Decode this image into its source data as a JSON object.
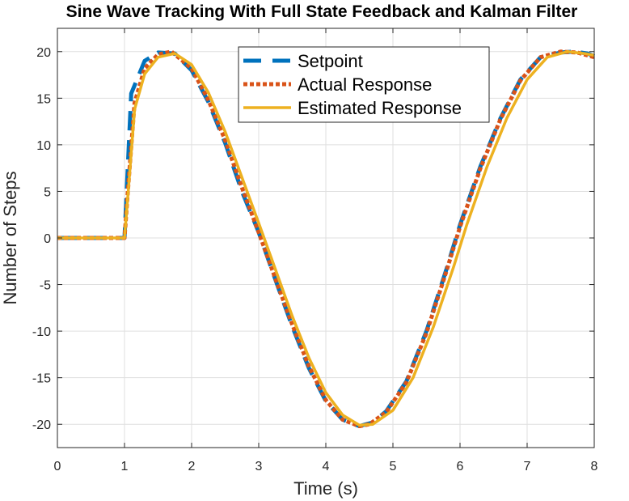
{
  "chart_data": {
    "type": "line",
    "title": "Sine Wave Tracking With Full State Feedback and Kalman Filter",
    "xlabel": "Time (s)",
    "ylabel": "Number of Steps",
    "xlim": [
      0,
      8
    ],
    "ylim": [
      -22.5,
      22.5
    ],
    "xticks": [
      0,
      1,
      2,
      3,
      4,
      5,
      6,
      7,
      8
    ],
    "yticks": [
      -20,
      -15,
      -10,
      -5,
      0,
      5,
      10,
      15,
      20
    ],
    "grid": true,
    "legend_position": "top-center",
    "series": [
      {
        "name": "Setpoint",
        "color": "#0072BD",
        "style": "dashed",
        "x": [
          0,
          1,
          1.0,
          1.1,
          1.3,
          1.5,
          1.75,
          2.0,
          2.25,
          2.5,
          2.75,
          3.0,
          3.25,
          3.5,
          3.75,
          4.0,
          4.25,
          4.5,
          4.7,
          4.9,
          5.2,
          5.5,
          5.8,
          6.0,
          6.3,
          6.6,
          6.9,
          7.2,
          7.5,
          7.7,
          7.9,
          8.0
        ],
        "y": [
          0,
          0,
          0,
          15.5,
          19.0,
          19.9,
          19.8,
          18.0,
          14.6,
          10.2,
          5.0,
          0.6,
          -4.5,
          -9.5,
          -14.0,
          -17.5,
          -19.5,
          -20.2,
          -19.8,
          -18.6,
          -15.4,
          -10.0,
          -3.3,
          1.4,
          7.6,
          12.8,
          17.0,
          19.4,
          19.9,
          20.0,
          19.8,
          19.5
        ]
      },
      {
        "name": "Actual Response",
        "color": "#D95319",
        "style": "dotted",
        "x": [
          0,
          1,
          1.0,
          1.05,
          1.15,
          1.3,
          1.5,
          1.7,
          2.0,
          2.25,
          2.5,
          2.75,
          3.0,
          3.25,
          3.5,
          3.75,
          4.0,
          4.25,
          4.5,
          4.65,
          4.9,
          5.2,
          5.5,
          5.8,
          6.0,
          6.3,
          6.6,
          6.9,
          7.2,
          7.5,
          7.75,
          8.0
        ],
        "y": [
          0,
          0,
          0,
          5.0,
          14.5,
          18.2,
          19.7,
          20.0,
          18.2,
          14.8,
          10.5,
          5.4,
          0.6,
          -4.4,
          -9.3,
          -13.8,
          -17.4,
          -19.5,
          -20.2,
          -20.0,
          -18.7,
          -15.5,
          -10.2,
          -3.5,
          1.2,
          7.4,
          12.7,
          16.9,
          19.4,
          20.0,
          19.9,
          19.4
        ]
      },
      {
        "name": "Estimated Response",
        "color": "#EDB120",
        "style": "solid",
        "x": [
          0,
          1,
          1.0,
          1.05,
          1.15,
          1.3,
          1.5,
          1.75,
          2.0,
          2.25,
          2.5,
          2.75,
          3.0,
          3.25,
          3.5,
          3.75,
          4.0,
          4.25,
          4.5,
          4.7,
          5.0,
          5.3,
          5.6,
          5.9,
          6.1,
          6.4,
          6.7,
          7.0,
          7.3,
          7.6,
          7.85,
          8.0
        ],
        "y": [
          0,
          0,
          0,
          4.5,
          13.8,
          17.6,
          19.4,
          19.8,
          18.6,
          15.6,
          11.4,
          6.5,
          1.6,
          -3.4,
          -8.4,
          -12.9,
          -16.6,
          -19.0,
          -20.1,
          -20.0,
          -18.5,
          -15.0,
          -9.6,
          -3.2,
          1.4,
          7.6,
          12.9,
          17.0,
          19.4,
          20.0,
          19.8,
          19.6
        ]
      }
    ]
  }
}
